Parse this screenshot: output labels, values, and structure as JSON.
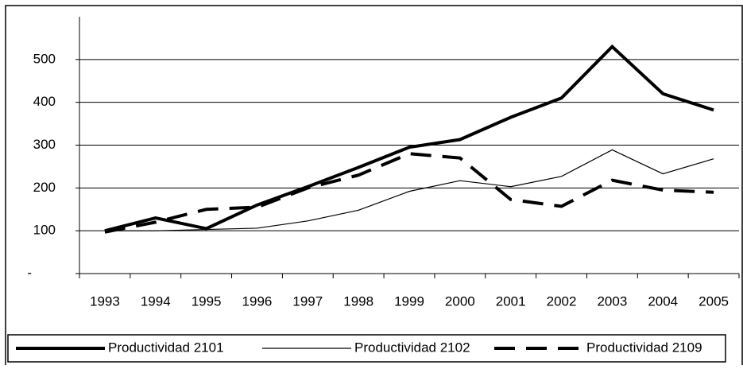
{
  "chart_data": {
    "type": "line",
    "categories": [
      "1993",
      "1994",
      "1995",
      "1996",
      "1997",
      "1998",
      "1999",
      "2000",
      "2001",
      "2002",
      "2003",
      "2004",
      "2005"
    ],
    "series": [
      {
        "name": "Productividad 2101",
        "color": "#000000",
        "style": "thick",
        "values": [
          100,
          130,
          105,
          160,
          203,
          248,
          295,
          313,
          365,
          410,
          530,
          420,
          382
        ]
      },
      {
        "name": "Productividad 2102",
        "color": "#000000",
        "style": "thin",
        "values": [
          100,
          100,
          103,
          106,
          123,
          148,
          192,
          217,
          203,
          227,
          289,
          233,
          268
        ]
      },
      {
        "name": "Productividad 2109",
        "color": "#000000",
        "style": "dashed",
        "values": [
          97,
          120,
          150,
          155,
          200,
          230,
          280,
          270,
          173,
          157,
          218,
          195,
          190
        ]
      }
    ],
    "ylim": [
      0,
      600
    ],
    "yticks": [
      {
        "value": 0,
        "label": "-"
      },
      100,
      200,
      300,
      400,
      500
    ],
    "grid": true,
    "legend": "bottom"
  }
}
